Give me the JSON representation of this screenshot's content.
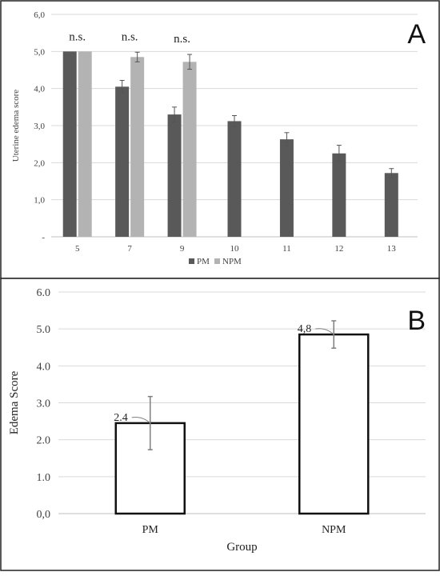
{
  "chart_data": [
    {
      "panel": "A",
      "type": "bar",
      "ylabel": "Uterine edema score",
      "xlabel": "",
      "ylim": [
        0,
        6
      ],
      "y_ticks": [
        "-",
        "1,0",
        "2,0",
        "3,0",
        "4,0",
        "5,0",
        "6,0"
      ],
      "categories": [
        "5",
        "7",
        "9",
        "10",
        "11",
        "12",
        "13"
      ],
      "grid": true,
      "legend_position": "bottom",
      "series": [
        {
          "name": "PM",
          "color": "#595959",
          "values": [
            5.0,
            4.05,
            3.3,
            3.12,
            2.63,
            2.25,
            1.72
          ],
          "errors": [
            0.0,
            0.17,
            0.2,
            0.15,
            0.18,
            0.22,
            0.12
          ]
        },
        {
          "name": "NPM",
          "color": "#b3b3b3",
          "values": [
            5.0,
            4.85,
            4.72,
            null,
            null,
            null,
            null
          ],
          "errors": [
            0.0,
            0.13,
            0.2,
            null,
            null,
            null,
            null
          ]
        }
      ],
      "annotations": [
        {
          "category": "5",
          "text": "n.s."
        },
        {
          "category": "7",
          "text": "n.s."
        },
        {
          "category": "9",
          "text": "n.s."
        }
      ]
    },
    {
      "panel": "B",
      "type": "bar",
      "ylabel": "Edema Score",
      "xlabel": "Group",
      "ylim": [
        0,
        6
      ],
      "y_ticks": [
        "0,0",
        "1.0",
        "2.0",
        "3.0",
        "4.0",
        "5.0",
        "6.0"
      ],
      "categories": [
        "PM",
        "NPM"
      ],
      "grid": true,
      "series": [
        {
          "name": "",
          "color": "#ffffff",
          "values": [
            2.45,
            4.85
          ],
          "errors": [
            0.72,
            0.37
          ]
        }
      ],
      "annotations": [
        {
          "category": "PM",
          "text": "2.4"
        },
        {
          "category": "NPM",
          "text": "4,8"
        }
      ]
    }
  ],
  "panel_labels": [
    "A",
    "B"
  ]
}
